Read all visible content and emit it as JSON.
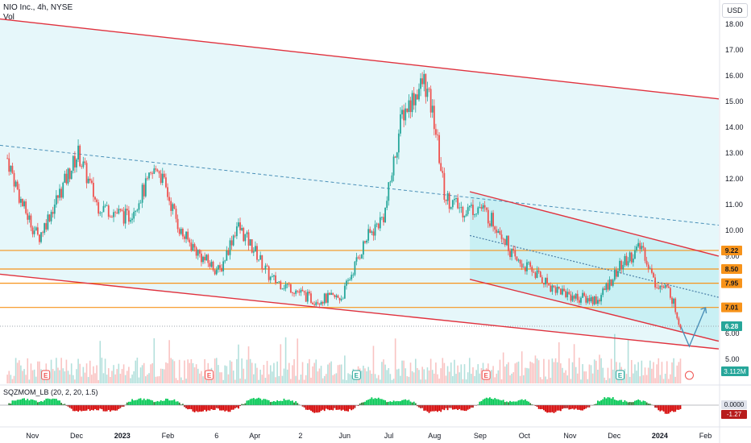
{
  "header": {
    "symbol": "NIO Inc., 4h, NYSE",
    "volume_label": "Vol"
  },
  "axis": {
    "currency": "USD"
  },
  "indicator": {
    "label": "SQZMOM_LB (20, 2, 20, 1.5)",
    "zero_value": "0.0000",
    "last_value": "-1.27"
  },
  "colors": {
    "up": "#26a69a",
    "down": "#ef5350",
    "channel": "#e0323e",
    "level": "#f7931a",
    "fill": "#b2ebf2"
  },
  "chart_data": {
    "type": "line",
    "title": "NIO Inc., 4h, NYSE",
    "ylim": [
      4.5,
      18.5
    ],
    "y_ticks": [
      5,
      6,
      7,
      8,
      9,
      10,
      11,
      12,
      13,
      14,
      15,
      16,
      17,
      18
    ],
    "y_tick_labels": [
      "5.00",
      "6.00",
      "7.00",
      "8.00",
      "9.00",
      "10.00",
      "11.00",
      "12.00",
      "13.00",
      "14.00",
      "15.00",
      "16.00",
      "17.00",
      "18.00"
    ],
    "x_tick_labels": [
      "Nov",
      "Dec",
      "2023",
      "Feb",
      "6",
      "Apr",
      "2",
      "Jun",
      "Jul",
      "Aug",
      "Sep",
      "Oct",
      "Nov",
      "Dec",
      "2024",
      "Feb"
    ],
    "series": [
      {
        "x": [
          "2022-10-15",
          "2022-10-25",
          "2022-11-05",
          "2022-11-20",
          "2022-12-02",
          "2022-12-15",
          "2023-01-05",
          "2023-01-25",
          "2023-02-10",
          "2023-02-25",
          "2023-03-08",
          "2023-03-20",
          "2023-04-01",
          "2023-04-12",
          "2023-04-25",
          "2023-05-10",
          "2023-05-30",
          "2023-06-15",
          "2023-06-28",
          "2023-07-10",
          "2023-07-25",
          "2023-08-01",
          "2023-08-08",
          "2023-08-20",
          "2023-09-01",
          "2023-09-15",
          "2023-09-25",
          "2023-10-05",
          "2023-10-20",
          "2023-11-05",
          "2023-11-20",
          "2023-12-05",
          "2023-12-20",
          "2023-12-28",
          "2024-01-08",
          "2024-01-15"
        ],
        "values": [
          12.8,
          11.0,
          9.7,
          11.5,
          13.0,
          11.0,
          10.5,
          12.5,
          9.9,
          8.9,
          8.4,
          10.2,
          9.2,
          8.1,
          7.8,
          7.3,
          7.4,
          9.6,
          10.6,
          14.5,
          15.8,
          14.2,
          11.3,
          10.8,
          10.9,
          10.0,
          8.8,
          8.5,
          7.8,
          7.4,
          7.3,
          8.6,
          9.4,
          8.0,
          7.6,
          6.3
        ]
      }
    ],
    "channels": [
      {
        "name": "",
        "from": [
          "2022-10-10",
          18.2
        ],
        "to": [
          "2024-02-10",
          15.1
        ]
      },
      {
        "name": "",
        "from": [
          "2022-10-10",
          8.3
        ],
        "to": [
          "2024-02-10",
          5.4
        ]
      },
      {
        "name": "",
        "from": [
          "2023-08-25",
          11.5
        ],
        "to": [
          "2024-02-10",
          9.0
        ]
      },
      {
        "name": "",
        "from": [
          "2023-08-25",
          8.1
        ],
        "to": [
          "2024-02-10",
          5.7
        ]
      }
    ],
    "horizontal_levels": [
      9.22,
      8.5,
      7.95,
      7.01
    ],
    "level_labels": [
      "9.22",
      "8.50",
      "7.95",
      "7.01"
    ],
    "last_price": 6.28,
    "last_price_label": "6.28",
    "volume_last": "3.112M",
    "grid": false
  }
}
